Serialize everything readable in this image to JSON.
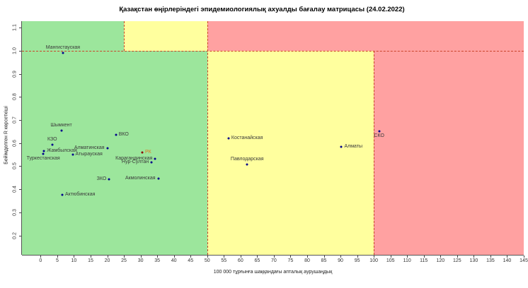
{
  "title": "Қазақстан өңірлеріндегі эпидемиологиялық ахуалды бағалау матрицасы  (24.02.2022)",
  "chart_data": {
    "type": "scatter",
    "title": "Қазақстан өңірлеріндегі эпидемиологиялық ахуалды бағалау матрицасы  (24.02.2022)",
    "xlabel": "100 000 тұрғынға шаққандағы апталық аурушаңдық",
    "ylabel": "Бейімделген R көрсеткіші",
    "xlim": [
      -5.6,
      145
    ],
    "ylim": [
      0.116,
      1.128
    ],
    "x_ticks": [
      0,
      5,
      10,
      15,
      20,
      25,
      30,
      35,
      40,
      45,
      50,
      55,
      60,
      65,
      70,
      75,
      80,
      85,
      90,
      95,
      100,
      105,
      110,
      115,
      120,
      125,
      130,
      135,
      140,
      145
    ],
    "y_ticks": [
      "0.2",
      "0.3",
      "0.4",
      "0.5",
      "0.6",
      "0.7",
      "0.8",
      "0.9",
      "1.0",
      "1.1"
    ],
    "grid": false,
    "legend": "none",
    "colors": {
      "zone_green": "#9CE69C",
      "zone_yellow": "#FFFF9E",
      "zone_red": "#FFA1A1",
      "threshold_dashed": "#C9442A",
      "point": "#00008B",
      "rk_point": "#8B0000",
      "rk_label": "#E07820",
      "label": "#3A3A3A"
    },
    "regions": [
      {
        "color": "zone_green",
        "x0": -5.6,
        "x1": 25,
        "y0": 1.0,
        "y1": 1.128
      },
      {
        "color": "zone_yellow",
        "x0": 25,
        "x1": 50,
        "y0": 1.0,
        "y1": 1.128
      },
      {
        "color": "zone_red",
        "x0": 50,
        "x1": 145,
        "y0": 1.0,
        "y1": 1.128
      },
      {
        "color": "zone_green",
        "x0": -5.6,
        "x1": 50,
        "y0": 0.116,
        "y1": 1.0
      },
      {
        "color": "zone_yellow",
        "x0": 50,
        "x1": 100,
        "y0": 0.116,
        "y1": 1.0
      },
      {
        "color": "zone_red",
        "x0": 100,
        "x1": 145,
        "y0": 0.116,
        "y1": 1.0
      }
    ],
    "dashed_lines": [
      {
        "orient": "h",
        "y": 1.0,
        "x0": -5.6,
        "x1": 145
      },
      {
        "orient": "v",
        "x": 25,
        "y0": 1.0,
        "y1": 1.128
      },
      {
        "orient": "v",
        "x": 50,
        "y0": 0.116,
        "y1": 1.128
      },
      {
        "orient": "v",
        "x": 100,
        "y0": 0.116,
        "y1": 1.0
      }
    ],
    "points": [
      {
        "name": "Мангистауская",
        "x": 6.7,
        "y": 0.99,
        "label_pos": "above",
        "series": "region"
      },
      {
        "name": "Шымкент",
        "x": 6.2,
        "y": 0.655,
        "label_pos": "above",
        "series": "region"
      },
      {
        "name": "ВКО",
        "x": 22.6,
        "y": 0.635,
        "label_pos": "right",
        "series": "region"
      },
      {
        "name": "КЗО",
        "x": 3.5,
        "y": 0.592,
        "label_pos": "above",
        "series": "region"
      },
      {
        "name": "Алматинская",
        "x": 20.0,
        "y": 0.578,
        "label_pos": "left",
        "series": "region"
      },
      {
        "name": "Жамбылская",
        "x": 1.0,
        "y": 0.565,
        "label_pos": "right",
        "series": "region"
      },
      {
        "name": "Туркестанская",
        "x": 0.8,
        "y": 0.552,
        "label_pos": "below",
        "series": "region"
      },
      {
        "name": "Атырауская",
        "x": 9.6,
        "y": 0.55,
        "label_pos": "right",
        "series": "region"
      },
      {
        "name": "РК",
        "x": 30.5,
        "y": 0.558,
        "label_pos": "right",
        "series": "rk"
      },
      {
        "name": "Карагандинская",
        "x": 34.4,
        "y": 0.533,
        "label_pos": "left",
        "series": "region"
      },
      {
        "name": "Нур-Султан",
        "x": 33.3,
        "y": 0.516,
        "label_pos": "left",
        "series": "region"
      },
      {
        "name": "Акмолинская",
        "x": 35.3,
        "y": 0.447,
        "label_pos": "left",
        "series": "region"
      },
      {
        "name": "ЗКО",
        "x": 20.6,
        "y": 0.443,
        "label_pos": "left",
        "series": "region"
      },
      {
        "name": "Актюбинская",
        "x": 6.5,
        "y": 0.376,
        "label_pos": "right",
        "series": "region"
      },
      {
        "name": "Костанайская",
        "x": 56.4,
        "y": 0.622,
        "label_pos": "right",
        "series": "region"
      },
      {
        "name": "Павлодарская",
        "x": 62.0,
        "y": 0.507,
        "label_pos": "above",
        "series": "region"
      },
      {
        "name": "Алматы",
        "x": 90.3,
        "y": 0.585,
        "label_pos": "right",
        "series": "region"
      },
      {
        "name": "СКО",
        "x": 101.6,
        "y": 0.652,
        "label_pos": "below",
        "series": "region"
      }
    ]
  }
}
